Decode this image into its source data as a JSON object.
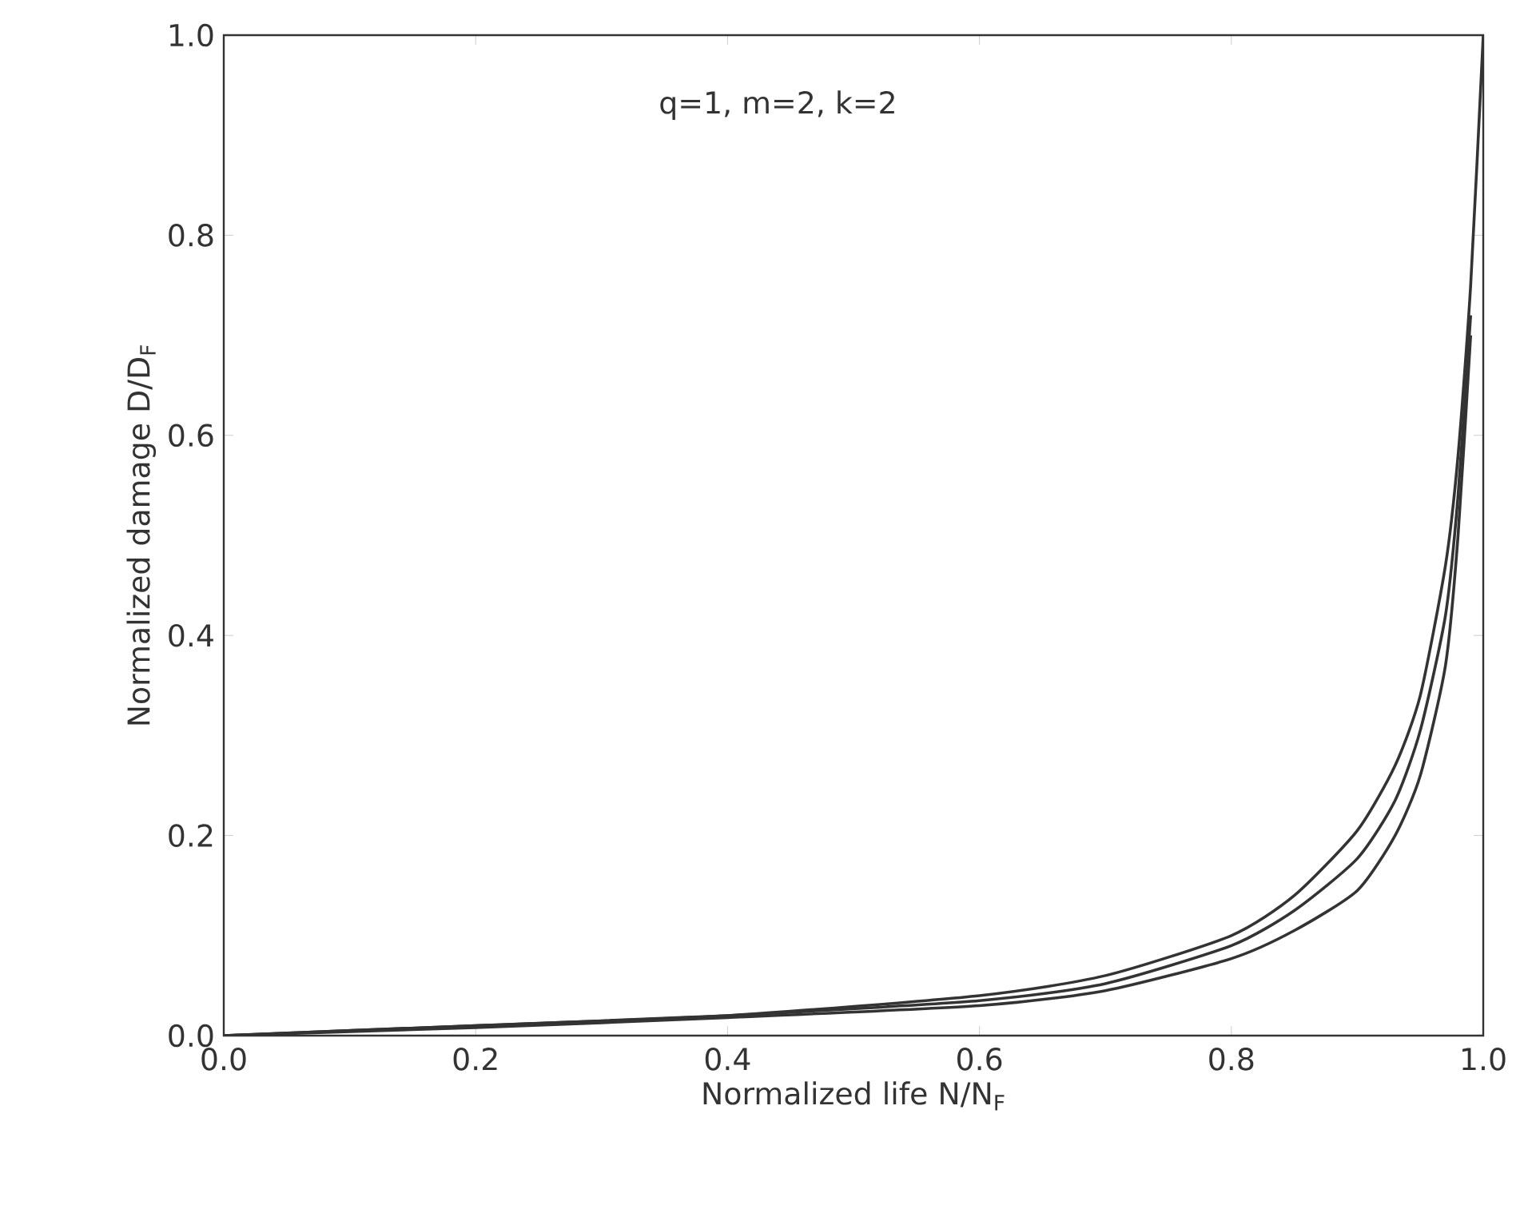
{
  "chart_data": {
    "type": "line",
    "xlabel": "Normalized life N/N$_{F}$",
    "ylabel": "Normalized damage D/D$_{F}$",
    "annotations": [
      "q=1, m=2, k=2"
    ],
    "x": [
      0,
      0.2,
      0.4,
      0.6,
      0.7,
      0.8,
      0.85,
      0.9,
      0.93,
      0.95,
      0.97,
      0.98,
      0.99,
      1.0
    ],
    "series": [
      {
        "color": "#333333",
        "values": [
          0,
          0.01,
          0.02,
          0.04,
          0.06,
          0.1,
          0.14,
          0.205,
          0.27,
          0.34,
          0.47,
          0.58,
          0.75,
          1.0
        ]
      },
      {
        "color": "#333333",
        "values": [
          0,
          0.01,
          0.02,
          0.035,
          0.052,
          0.09,
          0.125,
          0.177,
          0.235,
          0.305,
          0.42,
          0.54,
          0.72,
          null
        ]
      },
      {
        "color": "#333333",
        "values": [
          0,
          0.008,
          0.018,
          0.03,
          0.045,
          0.077,
          0.105,
          0.145,
          0.2,
          0.26,
          0.37,
          0.5,
          0.7,
          null
        ]
      }
    ],
    "xlim": [
      0,
      1
    ],
    "ylim": [
      0,
      1
    ],
    "xticks": [
      {
        "value": 0,
        "label": "0.0"
      },
      0.2,
      0.4,
      0.6,
      0.8,
      {
        "value": 1,
        "label": "1.0"
      }
    ],
    "yticks": [
      {
        "value": 0,
        "label": "0.0"
      },
      0.2,
      0.4,
      0.6,
      0.8,
      {
        "value": 1,
        "label": "1.0"
      }
    ],
    "grid": false,
    "marker": "none",
    "line_style": "solid"
  }
}
